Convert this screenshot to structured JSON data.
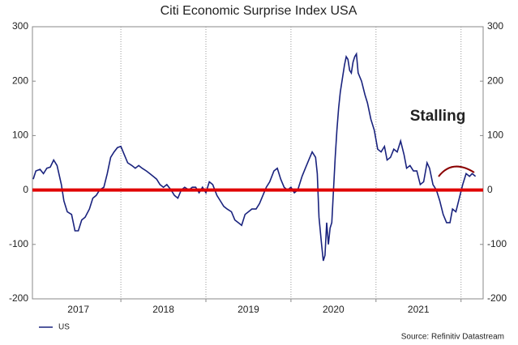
{
  "chart_data": {
    "type": "line",
    "title": "Citi Economic Surprise Index  USA",
    "annotation": "Stalling",
    "source": "Source: Refinitiv Datastream",
    "xlim": [
      2016.96,
      2022.26
    ],
    "xticks": [
      {
        "value": 2017.5,
        "label": "2017"
      },
      {
        "value": 2018.5,
        "label": "2018"
      },
      {
        "value": 2019.5,
        "label": "2019"
      },
      {
        "value": 2020.5,
        "label": "2020"
      },
      {
        "value": 2021.5,
        "label": "2021"
      }
    ],
    "ylim": [
      -200,
      300
    ],
    "yticks": [
      -200,
      -100,
      0,
      100,
      200,
      300
    ],
    "reference_line": {
      "value": 0,
      "color": "#e00000"
    },
    "x": [
      2016.97,
      2017.0,
      2017.05,
      2017.09,
      2017.13,
      2017.17,
      2017.21,
      2017.25,
      2017.3,
      2017.33,
      2017.37,
      2017.42,
      2017.46,
      2017.5,
      2017.54,
      2017.58,
      2017.63,
      2017.67,
      2017.71,
      2017.75,
      2017.8,
      2017.84,
      2017.88,
      2017.92,
      2017.96,
      2018.0,
      2018.04,
      2018.08,
      2018.13,
      2018.17,
      2018.21,
      2018.25,
      2018.3,
      2018.34,
      2018.38,
      2018.42,
      2018.46,
      2018.5,
      2018.54,
      2018.59,
      2018.63,
      2018.67,
      2018.71,
      2018.75,
      2018.8,
      2018.84,
      2018.88,
      2018.92,
      2018.96,
      2019.0,
      2019.04,
      2019.08,
      2019.13,
      2019.17,
      2019.21,
      2019.25,
      2019.3,
      2019.34,
      2019.38,
      2019.42,
      2019.46,
      2019.5,
      2019.54,
      2019.59,
      2019.63,
      2019.67,
      2019.71,
      2019.75,
      2019.8,
      2019.84,
      2019.88,
      2019.92,
      2019.96,
      2020.0,
      2020.04,
      2020.08,
      2020.13,
      2020.17,
      2020.21,
      2020.25,
      2020.29,
      2020.31,
      2020.33,
      2020.36,
      2020.38,
      2020.4,
      2020.42,
      2020.44,
      2020.46,
      2020.48,
      2020.5,
      2020.52,
      2020.54,
      2020.56,
      2020.58,
      2020.61,
      2020.63,
      2020.65,
      2020.67,
      2020.69,
      2020.71,
      2020.73,
      2020.75,
      2020.77,
      2020.79,
      2020.83,
      2020.87,
      2020.9,
      2020.94,
      2020.98,
      2021.02,
      2021.06,
      2021.1,
      2021.13,
      2021.17,
      2021.21,
      2021.25,
      2021.29,
      2021.33,
      2021.36,
      2021.4,
      2021.44,
      2021.48,
      2021.52,
      2021.56,
      2021.6,
      2021.63,
      2021.67,
      2021.71,
      2021.75,
      2021.79,
      2021.83,
      2021.87,
      2021.9,
      2021.94,
      2021.98,
      2022.02,
      2022.06,
      2022.1,
      2022.13,
      2022.17
    ],
    "series": [
      {
        "name": "US",
        "color": "#1a237e",
        "values": [
          20,
          35,
          38,
          30,
          40,
          42,
          55,
          45,
          10,
          -20,
          -40,
          -45,
          -75,
          -75,
          -55,
          -50,
          -35,
          -15,
          -10,
          0,
          5,
          30,
          60,
          70,
          78,
          80,
          65,
          50,
          45,
          40,
          45,
          40,
          35,
          30,
          25,
          20,
          10,
          5,
          10,
          0,
          -10,
          -15,
          0,
          5,
          0,
          5,
          5,
          -5,
          5,
          -5,
          15,
          10,
          -10,
          -20,
          -30,
          -35,
          -40,
          -55,
          -60,
          -65,
          -45,
          -40,
          -35,
          -35,
          -25,
          -10,
          5,
          15,
          35,
          40,
          20,
          5,
          0,
          5,
          -5,
          0,
          25,
          40,
          55,
          70,
          60,
          30,
          -50,
          -100,
          -130,
          -120,
          -60,
          -100,
          -70,
          -60,
          0,
          60,
          110,
          150,
          180,
          210,
          230,
          245,
          240,
          220,
          215,
          235,
          245,
          250,
          215,
          200,
          175,
          160,
          130,
          110,
          75,
          70,
          80,
          55,
          60,
          75,
          70,
          90,
          65,
          40,
          45,
          35,
          35,
          10,
          15,
          50,
          40,
          10,
          0,
          -20,
          -45,
          -60,
          -60,
          -35,
          -40,
          -15,
          10,
          30,
          25,
          30,
          25
        ]
      }
    ]
  }
}
